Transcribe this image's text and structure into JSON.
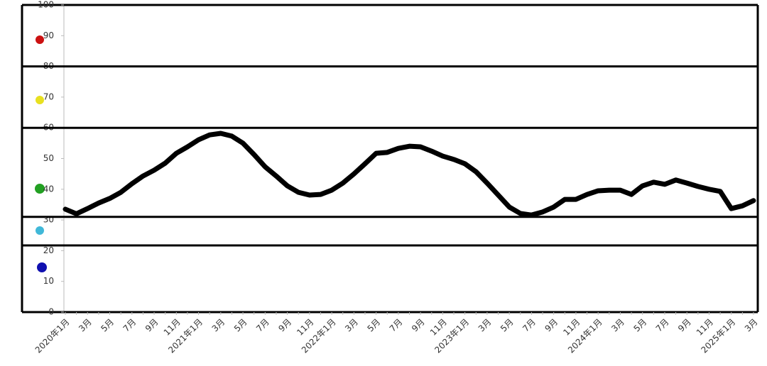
{
  "chart_data": {
    "type": "line",
    "categories": [
      "2020年1月",
      null,
      "3月",
      null,
      "5月",
      null,
      "7月",
      null,
      "9月",
      null,
      "11月",
      null,
      "2021年1月",
      null,
      "3月",
      null,
      "5月",
      null,
      "7月",
      null,
      "9月",
      null,
      "11月",
      null,
      "2022年1月",
      null,
      "3月",
      null,
      "5月",
      null,
      "7月",
      null,
      "9月",
      null,
      "11月",
      null,
      "2023年1月",
      null,
      "3月",
      null,
      "5月",
      null,
      "7月",
      null,
      "9月",
      null,
      "11月",
      null,
      "2024年1月",
      null,
      "3月",
      null,
      "5月",
      null,
      "7月",
      null,
      "9月",
      null,
      "11月",
      null,
      "2025年1月",
      null,
      "3月"
    ],
    "values": [
      33.5,
      32,
      33.7,
      35.5,
      37,
      39,
      41.8,
      44.3,
      46.2,
      48.5,
      51.7,
      53.8,
      56.1,
      57.7,
      58.2,
      57.3,
      55,
      51.3,
      47.3,
      44.3,
      41.1,
      39,
      38.1,
      38.3,
      39.7,
      42,
      45,
      48.3,
      51.7,
      52,
      53.3,
      54,
      53.8,
      52.4,
      50.8,
      49.7,
      48.3,
      45.7,
      42,
      38.1,
      34.2,
      32.1,
      31.6,
      32.6,
      34.2,
      36.7,
      36.7,
      38.3,
      39.5,
      39.7,
      39.7,
      38.3,
      41.1,
      42.3,
      41.6,
      43,
      42,
      40.9,
      40,
      39.3,
      33.7,
      34.6,
      36.3
    ],
    "color": "#000000",
    "ylim": [
      0,
      100
    ],
    "yticks": [
      0,
      10,
      20,
      30,
      40,
      50,
      60,
      70,
      80,
      90,
      100
    ],
    "thresholds": [
      80,
      60,
      31,
      21.7
    ]
  }
}
